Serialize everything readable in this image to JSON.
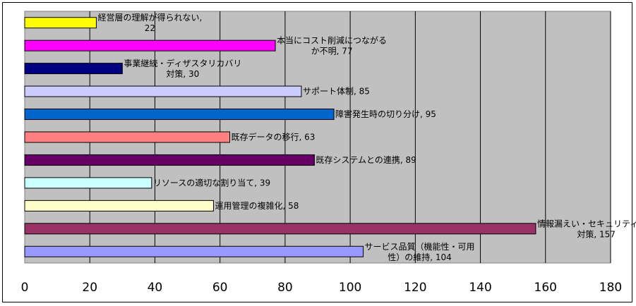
{
  "chart_data": {
    "type": "bar",
    "orientation": "horizontal",
    "title": "",
    "xlabel": "",
    "ylabel": "",
    "xlim": [
      0,
      180
    ],
    "x_ticks": [
      0,
      20,
      40,
      60,
      80,
      100,
      120,
      140,
      160,
      180
    ],
    "grid": "vertical",
    "legend": "none",
    "plot_background": "#c0c0c0",
    "bars": [
      {
        "label": [
          "経営層の理解が得られない,",
          "22"
        ],
        "value": 22,
        "color": "#ffff00"
      },
      {
        "label": [
          "本当にコスト削減につながる",
          "か不明, 77"
        ],
        "value": 77,
        "color": "#ff00ff"
      },
      {
        "label": [
          "事業継続・ディザスタリカバリ",
          "対策, 30"
        ],
        "value": 30,
        "color": "#000080"
      },
      {
        "label": [
          "サポート体制, 85"
        ],
        "value": 85,
        "color": "#ccccff"
      },
      {
        "label": [
          "障害発生時の切り分け, 95"
        ],
        "value": 95,
        "color": "#0066cc"
      },
      {
        "label": [
          "既存データの移行, 63"
        ],
        "value": 63,
        "color": "#ff8080"
      },
      {
        "label": [
          "既存システムとの連携, 89"
        ],
        "value": 89,
        "color": "#660066"
      },
      {
        "label": [
          "リソースの適切な割り当て, 39"
        ],
        "value": 39,
        "color": "#ccffff"
      },
      {
        "label": [
          "運用管理の複雑化, 58"
        ],
        "value": 58,
        "color": "#ffffcc"
      },
      {
        "label": [
          "情報漏えい・セキュリティへの",
          "対策, 157"
        ],
        "value": 157,
        "color": "#993366"
      },
      {
        "label": [
          "サービス品質（機能性・可用",
          "性）の維持, 104"
        ],
        "value": 104,
        "color": "#9999ff"
      }
    ]
  }
}
